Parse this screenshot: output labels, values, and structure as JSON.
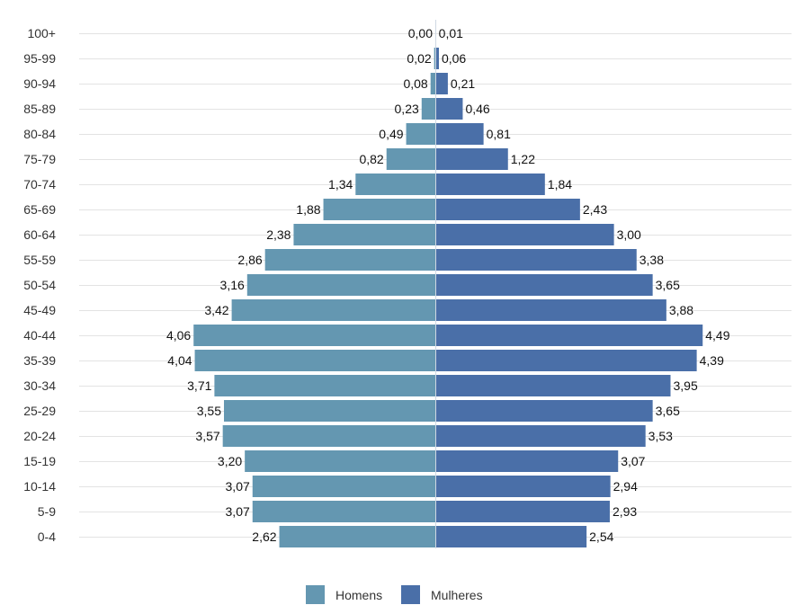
{
  "chart_data": {
    "type": "bar",
    "orientation": "horizontal-diverging",
    "categories": [
      "100+",
      "95-99",
      "90-94",
      "85-89",
      "80-84",
      "75-79",
      "70-74",
      "65-69",
      "60-64",
      "55-59",
      "50-54",
      "45-49",
      "40-44",
      "35-39",
      "30-34",
      "25-29",
      "20-24",
      "15-19",
      "10-14",
      "5-9",
      "0-4"
    ],
    "series": [
      {
        "name": "Homens",
        "color": "#6497b1",
        "values": [
          0.0,
          0.02,
          0.08,
          0.23,
          0.49,
          0.82,
          1.34,
          1.88,
          2.38,
          2.86,
          3.16,
          3.42,
          4.06,
          4.04,
          3.71,
          3.55,
          3.57,
          3.2,
          3.07,
          3.07,
          2.62
        ],
        "labels": [
          "0,00",
          "0,02",
          "0,08",
          "0,23",
          "0,49",
          "0,82",
          "1,34",
          "1,88",
          "2,38",
          "2,86",
          "3,16",
          "3,42",
          "4,06",
          "4,04",
          "3,71",
          "3,55",
          "3,57",
          "3,20",
          "3,07",
          "3,07",
          "2,62"
        ]
      },
      {
        "name": "Mulheres",
        "color": "#4a6fa8",
        "values": [
          0.01,
          0.06,
          0.21,
          0.46,
          0.81,
          1.22,
          1.84,
          2.43,
          3.0,
          3.38,
          3.65,
          3.88,
          4.49,
          4.39,
          3.95,
          3.65,
          3.53,
          3.07,
          2.94,
          2.93,
          2.54
        ],
        "labels": [
          "0,01",
          "0,06",
          "0,21",
          "0,46",
          "0,81",
          "1,22",
          "1,84",
          "2,43",
          "3,00",
          "3,38",
          "3,65",
          "3,88",
          "4,49",
          "4,39",
          "3,95",
          "3,65",
          "3,53",
          "3,07",
          "2,94",
          "2,93",
          "2,54"
        ]
      }
    ],
    "grid": true,
    "legend_position": "bottom-center",
    "title": "",
    "xlabel": "",
    "ylabel": ""
  }
}
